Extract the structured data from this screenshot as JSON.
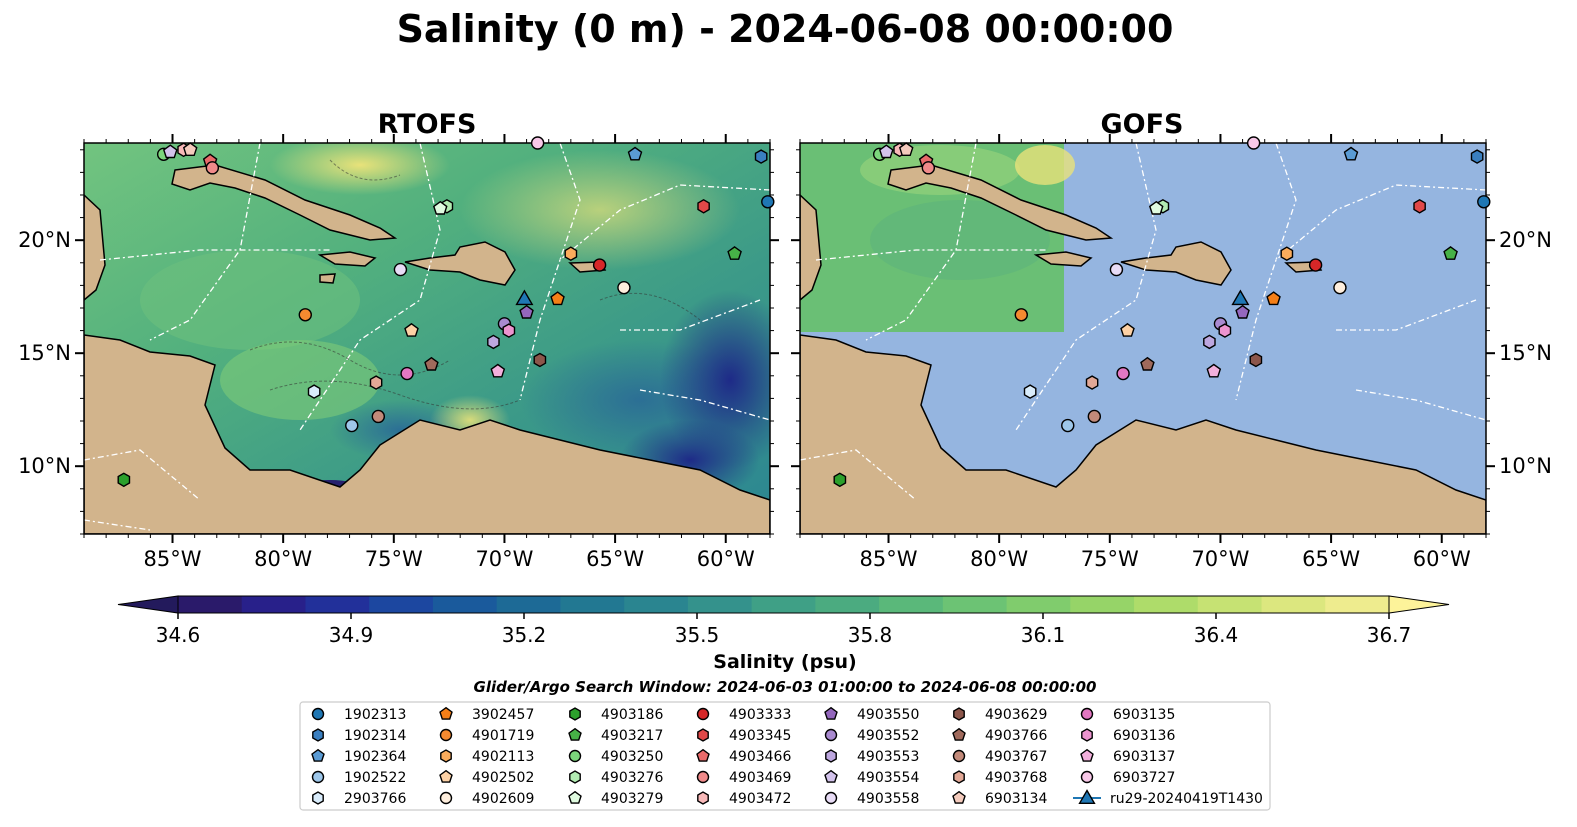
{
  "figure": {
    "suptitle": "Salinity (0 m) - 2024-06-08 00:00:00"
  },
  "panels": [
    {
      "title": "RTOFS",
      "coverage": "full"
    },
    {
      "title": "GOFS",
      "coverage": "partial"
    }
  ],
  "colors": {
    "land": "#d2b48c",
    "masked_ocean": "#95b5e0",
    "coast": "#000000",
    "grid_white": "#ffffff"
  },
  "colorbar": {
    "label": "Salinity (psu)",
    "ticks": [
      "34.6",
      "34.9",
      "35.2",
      "35.5",
      "35.8",
      "36.1",
      "36.4",
      "36.7"
    ],
    "min": 34.6,
    "max": 36.7,
    "colormap": "haline"
  },
  "search_window": "Glider/Argo Search Window: 2024-06-03 01:00:00 to 2024-06-08 00:00:00",
  "chart_data": {
    "type": "scatter",
    "map_projection": "plate-carree",
    "xlim": [
      -89,
      -58
    ],
    "ylim": [
      7,
      24.3
    ],
    "lon_ticks": [
      -85,
      -80,
      -75,
      -70,
      -65,
      -60
    ],
    "lat_ticks": [
      10,
      15,
      20
    ],
    "lon_tick_labels": [
      "85°W",
      "80°W",
      "75°W",
      "70°W",
      "65°W",
      "60°W"
    ],
    "lat_tick_labels": [
      "10°N",
      "15°N",
      "20°N"
    ],
    "series": [
      {
        "name": "1902313",
        "marker": "circle",
        "color": "#1f77b4",
        "lon": -58.1,
        "lat": 21.7
      },
      {
        "name": "1902314",
        "marker": "hexagon",
        "color": "#3a7fc0",
        "lon": -58.4,
        "lat": 23.7
      },
      {
        "name": "1902364",
        "marker": "pentagon",
        "color": "#5a9bd4",
        "lon": -64.1,
        "lat": 23.8
      },
      {
        "name": "1902522",
        "marker": "circle",
        "color": "#9ec7ea",
        "lon": -76.9,
        "lat": 11.8
      },
      {
        "name": "2903766",
        "marker": "hexagon",
        "color": "#d9ecfb",
        "lon": -78.6,
        "lat": 13.3
      },
      {
        "name": "3902457",
        "marker": "pentagon",
        "color": "#f57f17",
        "lon": -67.6,
        "lat": 17.4
      },
      {
        "name": "4901719",
        "marker": "circle",
        "color": "#f58a30",
        "lon": -79.0,
        "lat": 16.7
      },
      {
        "name": "4902113",
        "marker": "hexagon",
        "color": "#fbac5c",
        "lon": -67.0,
        "lat": 19.4
      },
      {
        "name": "4902502",
        "marker": "pentagon",
        "color": "#fdd1a5",
        "lon": -74.2,
        "lat": 16.0
      },
      {
        "name": "4902609",
        "marker": "circle",
        "color": "#feeedd",
        "lon": -64.6,
        "lat": 17.9
      },
      {
        "name": "4903186",
        "marker": "hexagon",
        "color": "#2ca02c",
        "lon": -87.2,
        "lat": 9.4
      },
      {
        "name": "4903217",
        "marker": "pentagon",
        "color": "#47b247",
        "lon": -59.6,
        "lat": 19.4
      },
      {
        "name": "4903250",
        "marker": "circle",
        "color": "#7cd67c",
        "lon": -85.4,
        "lat": 23.8
      },
      {
        "name": "4903276",
        "marker": "hexagon",
        "color": "#b2ebb2",
        "lon": -72.6,
        "lat": 21.5
      },
      {
        "name": "4903279",
        "marker": "pentagon",
        "color": "#e0fbe0",
        "lon": -72.9,
        "lat": 21.4
      },
      {
        "name": "4903333",
        "marker": "circle",
        "color": "#d62728",
        "lon": -65.7,
        "lat": 18.9
      },
      {
        "name": "4903345",
        "marker": "hexagon",
        "color": "#e04848",
        "lon": -61.0,
        "lat": 21.5
      },
      {
        "name": "4903466",
        "marker": "pentagon",
        "color": "#e96a6a",
        "lon": -83.3,
        "lat": 23.5
      },
      {
        "name": "4903469",
        "marker": "circle",
        "color": "#f08a8a",
        "lon": -83.2,
        "lat": 23.2
      },
      {
        "name": "4903472",
        "marker": "hexagon",
        "color": "#f8b9b9",
        "lon": -84.5,
        "lat": 24.0
      },
      {
        "name": "4903550",
        "marker": "pentagon",
        "color": "#9467bd",
        "lon": -69.0,
        "lat": 16.8
      },
      {
        "name": "4903552",
        "marker": "circle",
        "color": "#a98ad0",
        "lon": -70.0,
        "lat": 16.3
      },
      {
        "name": "4903553",
        "marker": "hexagon",
        "color": "#bda7df",
        "lon": -70.5,
        "lat": 15.5
      },
      {
        "name": "4903554",
        "marker": "pentagon",
        "color": "#d3c3ec",
        "lon": -85.1,
        "lat": 23.9
      },
      {
        "name": "4903558",
        "marker": "circle",
        "color": "#e8dcf6",
        "lon": -74.7,
        "lat": 18.7
      },
      {
        "name": "4903629",
        "marker": "hexagon",
        "color": "#8c564b",
        "lon": -68.4,
        "lat": 14.7
      },
      {
        "name": "4903766",
        "marker": "pentagon",
        "color": "#a06a5c",
        "lon": -73.3,
        "lat": 14.5
      },
      {
        "name": "4903767",
        "marker": "circle",
        "color": "#c28a7a",
        "lon": -75.7,
        "lat": 12.2
      },
      {
        "name": "4903768",
        "marker": "hexagon",
        "color": "#e2a896",
        "lon": -75.8,
        "lat": 13.7
      },
      {
        "name": "6903134",
        "marker": "pentagon",
        "color": "#f4cbbd",
        "lon": -84.2,
        "lat": 24.0
      },
      {
        "name": "6903135",
        "marker": "circle",
        "color": "#e377c2",
        "lon": -74.4,
        "lat": 14.1
      },
      {
        "name": "6903136",
        "marker": "hexagon",
        "color": "#ec94cf",
        "lon": -69.8,
        "lat": 16.0
      },
      {
        "name": "6903137",
        "marker": "pentagon",
        "color": "#f3b0dc",
        "lon": -70.3,
        "lat": 14.2
      },
      {
        "name": "6903727",
        "marker": "circle",
        "color": "#f8c8e8",
        "lon": -68.5,
        "lat": 24.3
      },
      {
        "name": "ru29-20240419T1430",
        "marker": "triangle",
        "color": "#1f77b4",
        "lon": -69.1,
        "lat": 17.4
      }
    ]
  }
}
